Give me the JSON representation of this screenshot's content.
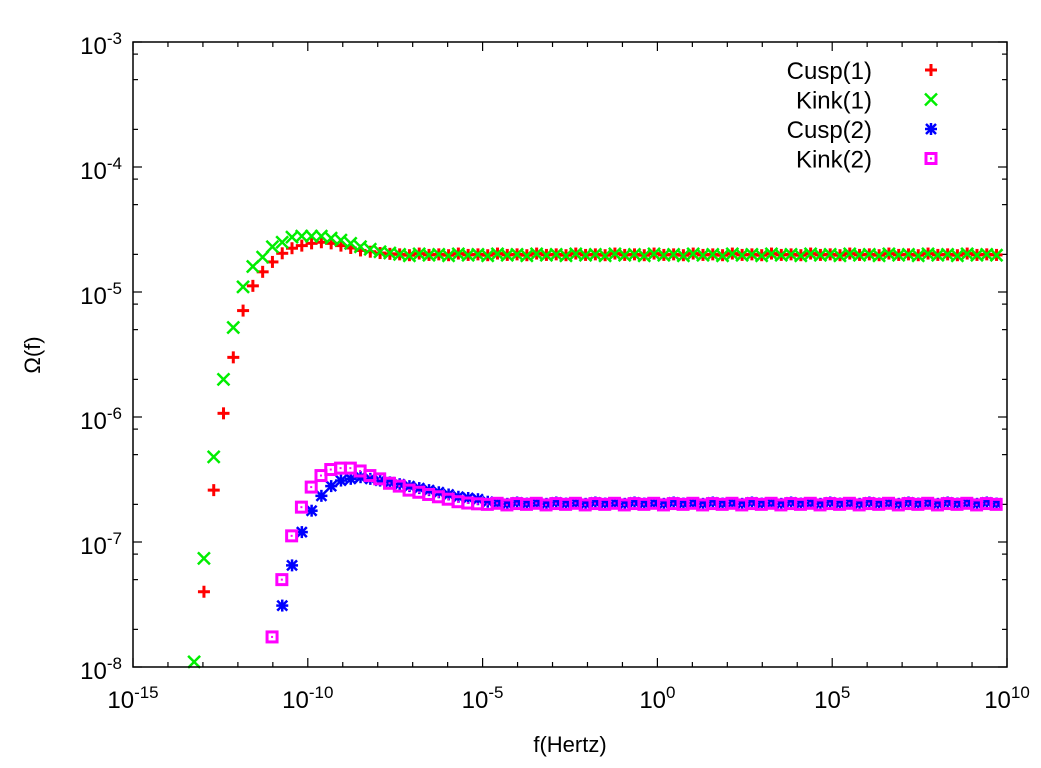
{
  "chart_data": {
    "type": "scatter",
    "xlabel": "f(Hertz)",
    "ylabel": "Ω(f)",
    "x_scale": "log",
    "y_scale": "log",
    "xlim": [
      1e-15,
      10000000000.0
    ],
    "ylim": [
      1e-08,
      0.001
    ],
    "x_ticks": [
      1e-15,
      1e-10,
      1e-05,
      1,
      100000.0,
      10000000000.0
    ],
    "x_tick_labels": [
      "10^-15",
      "10^-10",
      "10^-5",
      "10^0",
      "10^5",
      "10^10"
    ],
    "y_ticks": [
      1e-08,
      1e-07,
      1e-06,
      1e-05,
      0.0001,
      0.001
    ],
    "y_tick_labels": [
      "10^-8",
      "10^-7",
      "10^-6",
      "10^-5",
      "10^-4",
      "10^-3"
    ],
    "grid": false,
    "legend_position": "top-right",
    "series": [
      {
        "name": "Cusp(1)",
        "marker": "plus",
        "color": "#ff0000",
        "x_start": 1.07e-13,
        "x_ratio": 1.905,
        "y": [
          4e-08,
          2.6e-07,
          1.07e-06,
          3e-06,
          7.1e-06,
          1.12e-05,
          1.45e-05,
          1.74e-05,
          2.04e-05,
          2.24e-05,
          2.35e-05,
          2.45e-05,
          2.5e-05,
          2.45e-05,
          2.35e-05,
          2.25e-05,
          2.15e-05,
          2.1e-05,
          2.05e-05,
          2.02e-05,
          2e-05,
          1.97e-05,
          2.03e-05,
          1.98e-05,
          2e-05,
          1.97e-05,
          2.03e-05,
          1.98e-05,
          2e-05,
          1.97e-05,
          2.03e-05,
          1.98e-05,
          2e-05,
          1.97e-05,
          2.03e-05,
          1.98e-05,
          2e-05,
          1.97e-05,
          2.03e-05,
          1.98e-05,
          2e-05,
          1.97e-05,
          2.03e-05,
          1.98e-05,
          2e-05,
          1.97e-05,
          2.03e-05,
          1.98e-05,
          2e-05,
          1.97e-05,
          2.03e-05,
          1.98e-05,
          2e-05,
          1.97e-05,
          2.03e-05,
          1.98e-05,
          2e-05,
          1.97e-05,
          2.03e-05,
          1.98e-05,
          2e-05,
          1.97e-05,
          2.03e-05,
          1.98e-05,
          2e-05,
          1.97e-05,
          2.03e-05,
          1.98e-05,
          2e-05,
          1.97e-05,
          2.03e-05,
          1.98e-05,
          2e-05,
          1.97e-05,
          2.03e-05,
          1.98e-05,
          2e-05,
          1.97e-05,
          2.03e-05,
          1.98e-05,
          2e-05,
          1.98e-05
        ]
      },
      {
        "name": "Kink(1)",
        "marker": "cross",
        "color": "#00ee00",
        "x_start": 5.6e-14,
        "x_ratio": 1.905,
        "y": [
          1.1e-08,
          7.4e-08,
          4.8e-07,
          2e-06,
          5.2e-06,
          1.1e-05,
          1.6e-05,
          1.9e-05,
          2.3e-05,
          2.5e-05,
          2.75e-05,
          2.8e-05,
          2.8e-05,
          2.8e-05,
          2.7e-05,
          2.6e-05,
          2.45e-05,
          2.3e-05,
          2.2e-05,
          2.1e-05,
          2.05e-05,
          2e-05,
          1.95e-05,
          2.02e-05,
          1.97e-05,
          2e-05,
          1.95e-05,
          2.02e-05,
          1.97e-05,
          2e-05,
          1.95e-05,
          2.02e-05,
          1.97e-05,
          2e-05,
          1.95e-05,
          2.02e-05,
          1.97e-05,
          2e-05,
          1.95e-05,
          2.02e-05,
          1.97e-05,
          2e-05,
          1.95e-05,
          2.02e-05,
          1.97e-05,
          2e-05,
          1.95e-05,
          2.02e-05,
          1.97e-05,
          2e-05,
          1.95e-05,
          2.02e-05,
          1.97e-05,
          2e-05,
          1.95e-05,
          2.02e-05,
          1.97e-05,
          2e-05,
          1.95e-05,
          2.02e-05,
          1.97e-05,
          2e-05,
          1.95e-05,
          2.02e-05,
          1.97e-05,
          2e-05,
          1.95e-05,
          2.02e-05,
          1.97e-05,
          2e-05,
          1.95e-05,
          2.02e-05,
          1.97e-05,
          2e-05,
          1.95e-05,
          2.02e-05,
          1.97e-05,
          2e-05,
          1.95e-05,
          2.02e-05,
          1.97e-05,
          2e-05,
          1.97e-05
        ]
      },
      {
        "name": "Cusp(2)",
        "marker": "asterisk",
        "color": "#0000ff",
        "x_start": 1.86e-11,
        "x_ratio": 1.905,
        "y": [
          3.1e-08,
          6.5e-08,
          1.2e-07,
          1.78e-07,
          2.34e-07,
          2.8e-07,
          3.1e-07,
          3.2e-07,
          3.3e-07,
          3.2e-07,
          3.1e-07,
          3e-07,
          2.9e-07,
          2.8e-07,
          2.7e-07,
          2.6e-07,
          2.5e-07,
          2.4e-07,
          2.3e-07,
          2.25e-07,
          2.2e-07,
          2.1e-07,
          2.05e-07,
          2.02e-07,
          2.07e-07,
          2.03e-07,
          2.05e-07,
          2.02e-07,
          2.07e-07,
          2.03e-07,
          2.05e-07,
          2.02e-07,
          2.07e-07,
          2.03e-07,
          2.05e-07,
          2.02e-07,
          2.07e-07,
          2.03e-07,
          2.05e-07,
          2.02e-07,
          2.07e-07,
          2.03e-07,
          2.05e-07,
          2.02e-07,
          2.07e-07,
          2.03e-07,
          2.05e-07,
          2.02e-07,
          2.07e-07,
          2.03e-07,
          2.05e-07,
          2.02e-07,
          2.07e-07,
          2.03e-07,
          2.05e-07,
          2.02e-07,
          2.07e-07,
          2.03e-07,
          2.05e-07,
          2.02e-07,
          2.07e-07,
          2.03e-07,
          2.05e-07,
          2.02e-07,
          2.07e-07,
          2.03e-07,
          2.05e-07,
          2.02e-07,
          2.07e-07,
          2.03e-07,
          2.05e-07,
          2.02e-07,
          2.07e-07,
          2.03e-07
        ]
      },
      {
        "name": "Kink(2)",
        "marker": "square",
        "color": "#ff00ff",
        "x_start": 9.5e-12,
        "x_ratio": 1.905,
        "y": [
          1.74e-08,
          5e-08,
          1.12e-07,
          1.9e-07,
          2.75e-07,
          3.4e-07,
          3.8e-07,
          3.9e-07,
          3.9e-07,
          3.7e-07,
          3.4e-07,
          3.2e-07,
          2.95e-07,
          2.8e-07,
          2.6e-07,
          2.5e-07,
          2.4e-07,
          2.3e-07,
          2.2e-07,
          2.1e-07,
          2.05e-07,
          2.02e-07,
          2e-07,
          2.04e-07,
          1.98e-07,
          2.03e-07,
          2e-07,
          2.04e-07,
          1.98e-07,
          2.03e-07,
          2e-07,
          2.04e-07,
          1.98e-07,
          2.03e-07,
          2e-07,
          2.04e-07,
          1.98e-07,
          2.03e-07,
          2e-07,
          2.04e-07,
          1.98e-07,
          2.03e-07,
          2e-07,
          2.04e-07,
          1.98e-07,
          2.03e-07,
          2e-07,
          2.04e-07,
          1.98e-07,
          2.03e-07,
          2e-07,
          2.04e-07,
          1.98e-07,
          2.03e-07,
          2e-07,
          2.04e-07,
          1.98e-07,
          2.03e-07,
          2e-07,
          2.04e-07,
          1.98e-07,
          2.03e-07,
          2e-07,
          2.04e-07,
          1.98e-07,
          2.03e-07,
          2e-07,
          2.04e-07,
          1.98e-07,
          2.03e-07,
          2e-07,
          2.04e-07,
          1.98e-07,
          2.03e-07,
          2e-07
        ]
      }
    ]
  }
}
